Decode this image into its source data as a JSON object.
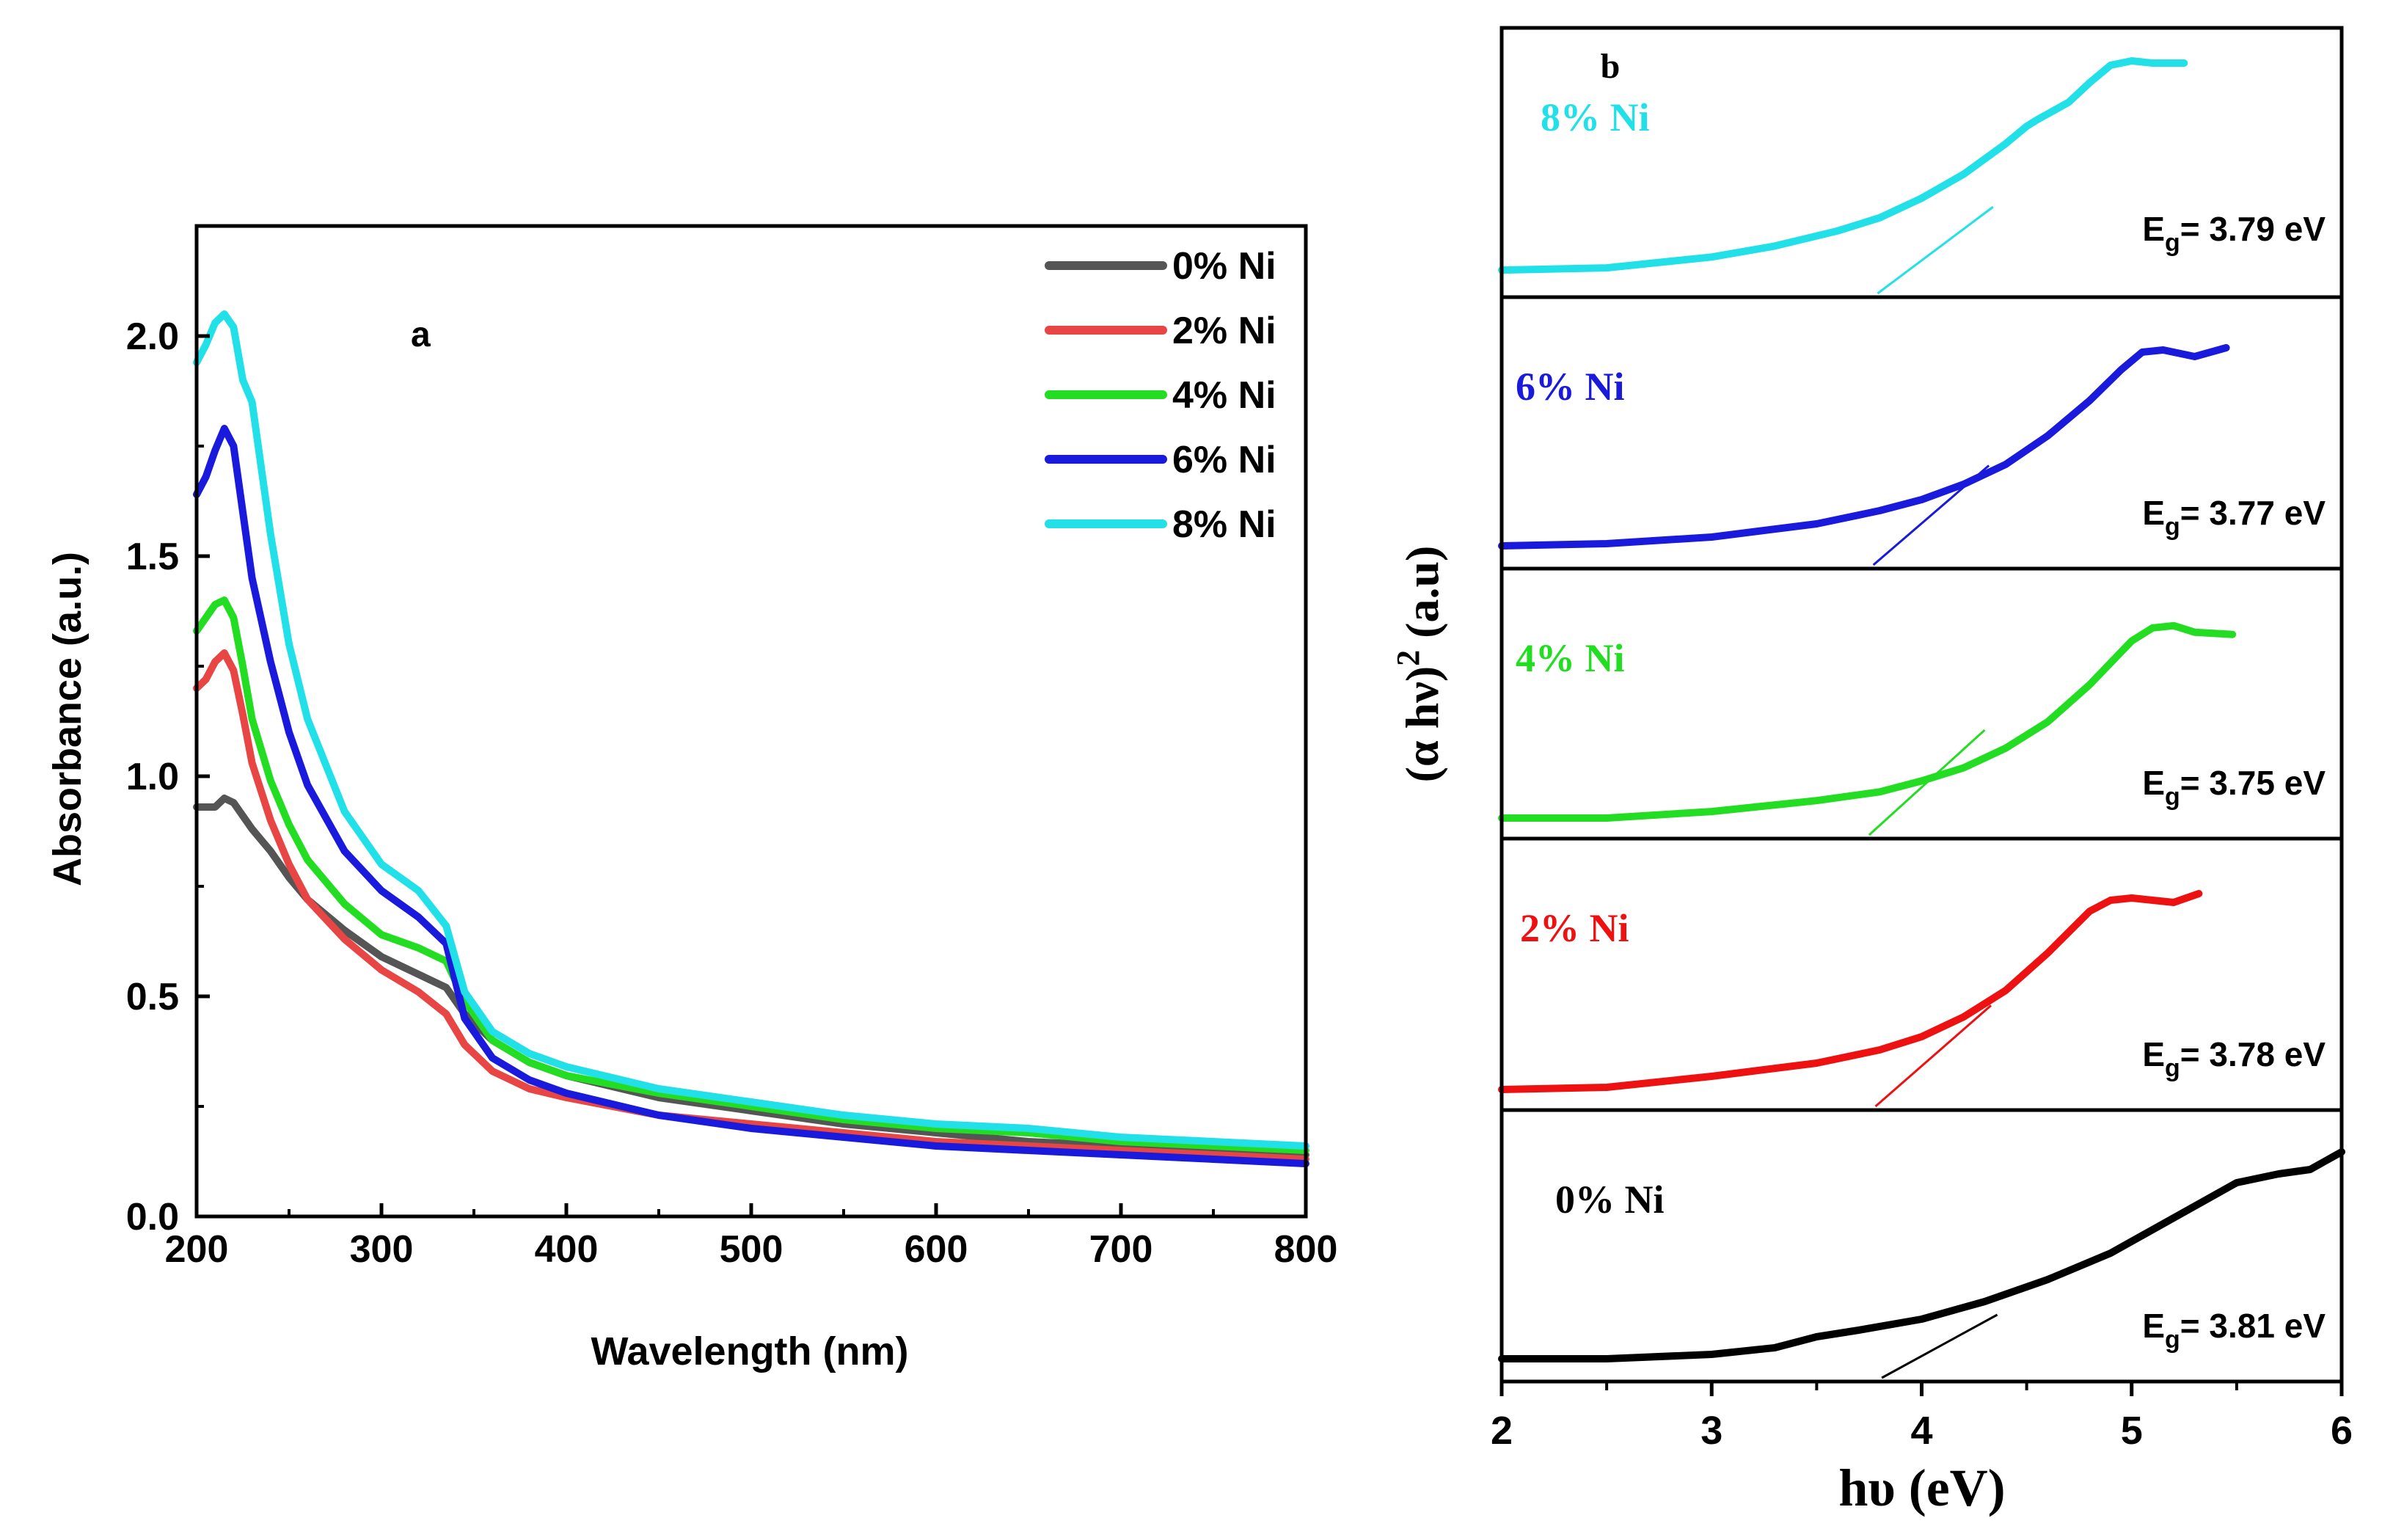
{
  "chart_data": [
    {
      "type": "line",
      "panel_label": "a",
      "xlabel": "Wavelength (nm)",
      "ylabel": "Absorbance (a.u.)",
      "xlim": [
        200,
        800
      ],
      "ylim": [
        0,
        2.25
      ],
      "xticks": [
        "200",
        "300",
        "400",
        "500",
        "600",
        "700",
        "800"
      ],
      "yticks": [
        "0.0",
        "0.5",
        "1.0",
        "1.5",
        "2.0"
      ],
      "legend_position": "top-right",
      "series": [
        {
          "name": "0% Ni",
          "color": "#555555",
          "x": [
            200,
            205,
            210,
            215,
            220,
            225,
            230,
            240,
            250,
            260,
            280,
            300,
            320,
            335,
            345,
            360,
            380,
            400,
            450,
            500,
            550,
            600,
            650,
            700,
            750,
            800
          ],
          "values": [
            0.93,
            0.93,
            0.93,
            0.95,
            0.94,
            0.91,
            0.88,
            0.83,
            0.77,
            0.72,
            0.65,
            0.59,
            0.55,
            0.52,
            0.46,
            0.4,
            0.35,
            0.32,
            0.27,
            0.24,
            0.21,
            0.19,
            0.17,
            0.16,
            0.15,
            0.14
          ]
        },
        {
          "name": "2% Ni",
          "color": "#e84545",
          "x": [
            200,
            205,
            210,
            215,
            220,
            225,
            230,
            240,
            250,
            260,
            280,
            300,
            320,
            335,
            345,
            360,
            380,
            400,
            450,
            500,
            550,
            600,
            650,
            700,
            750,
            800
          ],
          "values": [
            1.2,
            1.22,
            1.26,
            1.28,
            1.24,
            1.14,
            1.03,
            0.9,
            0.8,
            0.72,
            0.63,
            0.56,
            0.51,
            0.46,
            0.39,
            0.33,
            0.29,
            0.27,
            0.23,
            0.21,
            0.19,
            0.17,
            0.16,
            0.15,
            0.14,
            0.13
          ]
        },
        {
          "name": "4% Ni",
          "color": "#22dd22",
          "x": [
            200,
            205,
            210,
            215,
            220,
            225,
            230,
            240,
            250,
            260,
            280,
            300,
            320,
            335,
            345,
            360,
            380,
            400,
            450,
            500,
            550,
            600,
            650,
            700,
            750,
            800
          ],
          "values": [
            1.33,
            1.36,
            1.39,
            1.4,
            1.36,
            1.25,
            1.13,
            0.99,
            0.89,
            0.81,
            0.71,
            0.64,
            0.61,
            0.58,
            0.49,
            0.4,
            0.35,
            0.32,
            0.28,
            0.25,
            0.22,
            0.2,
            0.19,
            0.17,
            0.16,
            0.15
          ]
        },
        {
          "name": "6% Ni",
          "color": "#1a1adc",
          "x": [
            200,
            205,
            210,
            215,
            220,
            225,
            230,
            240,
            250,
            260,
            280,
            300,
            320,
            335,
            345,
            360,
            380,
            400,
            450,
            500,
            550,
            600,
            650,
            700,
            750,
            800
          ],
          "values": [
            1.64,
            1.68,
            1.74,
            1.79,
            1.75,
            1.6,
            1.45,
            1.26,
            1.1,
            0.98,
            0.83,
            0.74,
            0.68,
            0.62,
            0.45,
            0.36,
            0.31,
            0.28,
            0.23,
            0.2,
            0.18,
            0.16,
            0.15,
            0.14,
            0.13,
            0.12
          ]
        },
        {
          "name": "8% Ni",
          "color": "#22e0e8",
          "x": [
            200,
            205,
            210,
            215,
            220,
            225,
            230,
            240,
            250,
            260,
            280,
            300,
            320,
            335,
            345,
            360,
            380,
            400,
            450,
            500,
            550,
            600,
            650,
            700,
            750,
            800
          ],
          "values": [
            1.94,
            1.98,
            2.03,
            2.05,
            2.02,
            1.9,
            1.85,
            1.55,
            1.3,
            1.13,
            0.92,
            0.8,
            0.74,
            0.66,
            0.51,
            0.42,
            0.37,
            0.34,
            0.29,
            0.26,
            0.23,
            0.21,
            0.2,
            0.18,
            0.17,
            0.16
          ]
        }
      ]
    },
    {
      "type": "line",
      "panel_label": "b",
      "xlabel": "hυ (eV)",
      "ylabel_prefix": "(α hν)",
      "ylabel_sup": "2",
      "ylabel_suffix": " (a.u)",
      "xlim": [
        2,
        6
      ],
      "xticks": [
        "2",
        "3",
        "4",
        "5",
        "6"
      ],
      "panels": [
        {
          "name": "8% Ni",
          "color": "#22e0e8",
          "eg_prefix": "E",
          "eg_sub": "g",
          "eg_value": "= 3.79 eV",
          "tangent_intercept": 3.79,
          "x": [
            2.0,
            2.5,
            3.0,
            3.3,
            3.6,
            3.8,
            4.0,
            4.2,
            4.4,
            4.5,
            4.55,
            4.7,
            4.8,
            4.9,
            5.0,
            5.1,
            5.25
          ],
          "values": [
            0.04,
            0.05,
            0.1,
            0.15,
            0.22,
            0.28,
            0.37,
            0.48,
            0.62,
            0.7,
            0.73,
            0.81,
            0.9,
            0.98,
            1.0,
            0.99,
            0.99
          ]
        },
        {
          "name": "6% Ni",
          "color": "#1a1adc",
          "eg_prefix": "E",
          "eg_sub": "g",
          "eg_value": "= 3.77 eV",
          "tangent_intercept": 3.77,
          "x": [
            2.0,
            2.5,
            3.0,
            3.5,
            3.8,
            4.0,
            4.2,
            4.4,
            4.6,
            4.8,
            4.95,
            5.05,
            5.15,
            5.3,
            5.45
          ],
          "values": [
            0.02,
            0.03,
            0.06,
            0.12,
            0.18,
            0.23,
            0.3,
            0.39,
            0.52,
            0.68,
            0.82,
            0.9,
            0.91,
            0.88,
            0.92
          ]
        },
        {
          "name": "4% Ni",
          "color": "#22dd22",
          "eg_prefix": "E",
          "eg_sub": "g",
          "eg_value": "= 3.75 eV",
          "tangent_intercept": 3.75,
          "x": [
            2.0,
            2.5,
            3.0,
            3.5,
            3.8,
            4.0,
            4.2,
            4.4,
            4.6,
            4.8,
            5.0,
            5.1,
            5.2,
            5.3,
            5.48
          ],
          "values": [
            0.01,
            0.01,
            0.04,
            0.09,
            0.13,
            0.18,
            0.24,
            0.33,
            0.45,
            0.62,
            0.82,
            0.88,
            0.89,
            0.86,
            0.85
          ]
        },
        {
          "name": "2% Ni",
          "color": "#ee1111",
          "eg_prefix": "E",
          "eg_sub": "g",
          "eg_value": "= 3.78 eV",
          "tangent_intercept": 3.78,
          "x": [
            2.0,
            2.5,
            3.0,
            3.5,
            3.8,
            4.0,
            4.2,
            4.4,
            4.6,
            4.8,
            4.9,
            5.0,
            5.1,
            5.2,
            5.32
          ],
          "values": [
            0.01,
            0.02,
            0.07,
            0.13,
            0.19,
            0.25,
            0.34,
            0.46,
            0.63,
            0.82,
            0.87,
            0.88,
            0.87,
            0.86,
            0.9
          ]
        },
        {
          "name": "0% Ni",
          "color": "#000000",
          "eg_prefix": "E",
          "eg_sub": "g",
          "eg_value": "= 3.81 eV",
          "tangent_intercept": 3.81,
          "x": [
            2.0,
            2.5,
            3.0,
            3.3,
            3.5,
            3.7,
            4.0,
            4.3,
            4.6,
            4.9,
            5.2,
            5.5,
            5.7,
            5.85,
            6.0
          ],
          "values": [
            0.02,
            0.02,
            0.04,
            0.07,
            0.12,
            0.15,
            0.2,
            0.28,
            0.38,
            0.5,
            0.66,
            0.82,
            0.86,
            0.88,
            0.96
          ]
        }
      ]
    }
  ]
}
